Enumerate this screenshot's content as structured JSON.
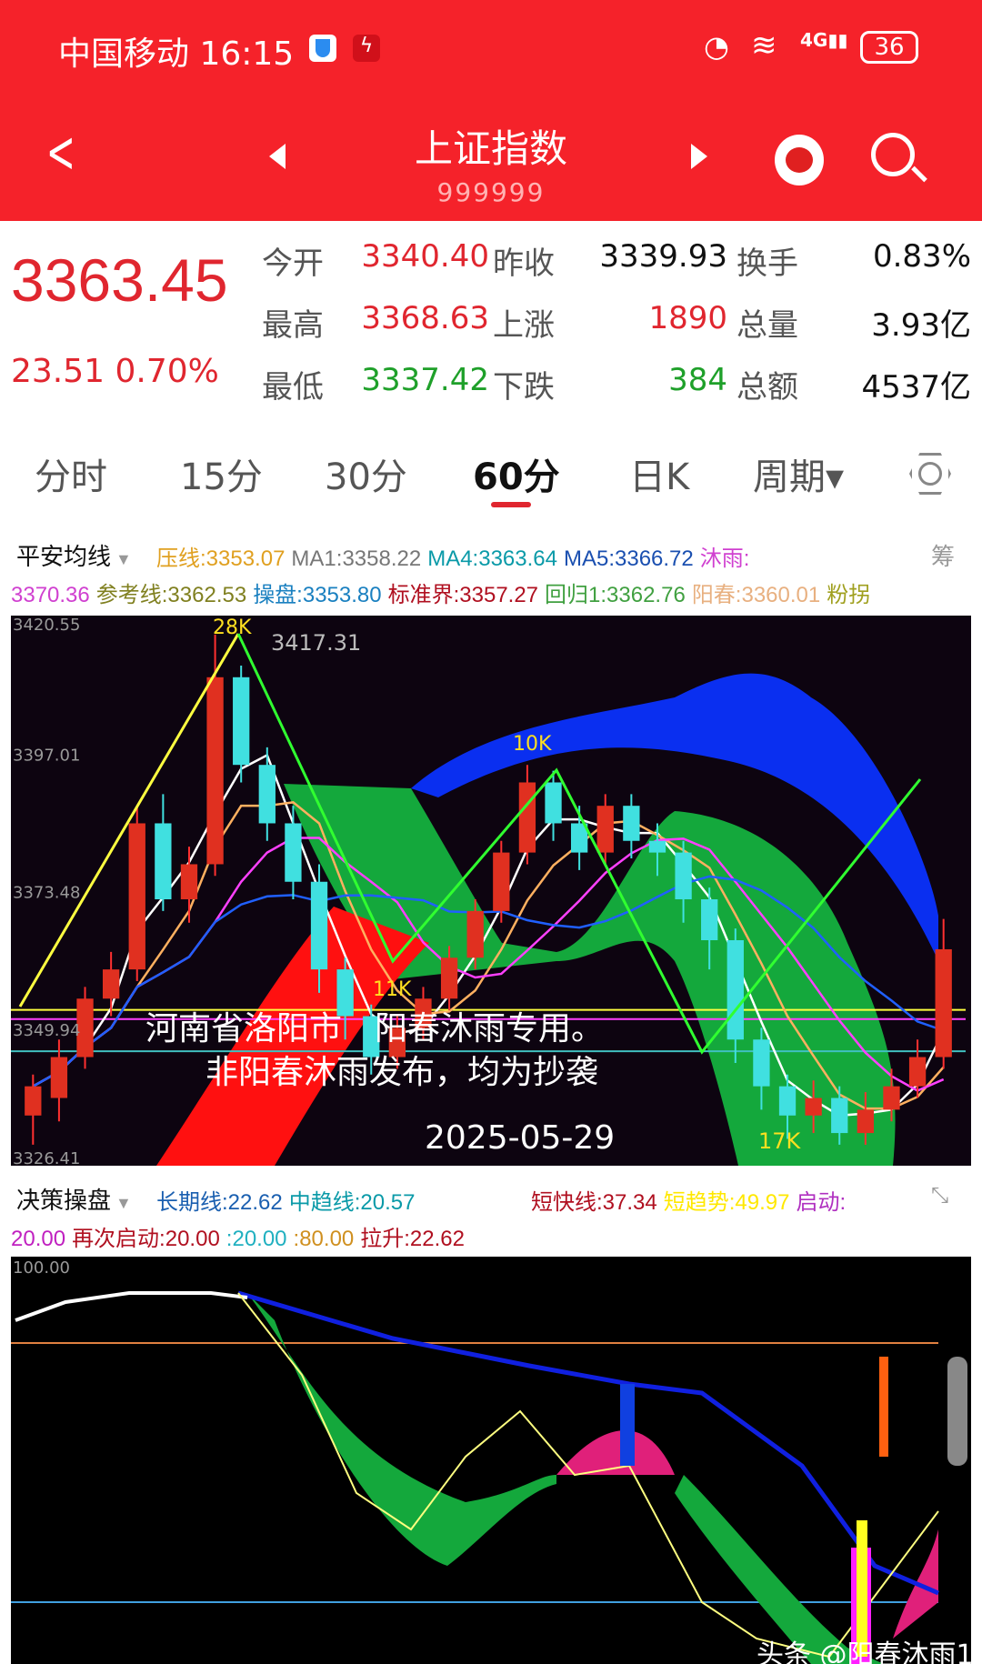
{
  "status": {
    "carrier": "中国移动",
    "time": "16:15",
    "battery": "36",
    "network": "4G"
  },
  "header": {
    "title": "上证指数",
    "code": "999999",
    "icons": [
      "back-icon",
      "prev-triangle-icon",
      "next-triangle-icon",
      "mascot-icon",
      "search-icon"
    ]
  },
  "quote": {
    "price": "3363.45",
    "change": "23.51",
    "pct": "0.70%",
    "rows": [
      [
        {
          "l": "今开",
          "v": "3340.40",
          "c": "red"
        },
        {
          "l": "昨收",
          "v": "3339.93",
          "c": "blk"
        },
        {
          "l": "换手",
          "v": "0.83%",
          "c": "blk"
        }
      ],
      [
        {
          "l": "最高",
          "v": "3368.63",
          "c": "red"
        },
        {
          "l": "上涨",
          "v": "1890",
          "c": "red"
        },
        {
          "l": "总量",
          "v": "3.93亿",
          "c": "blk"
        }
      ],
      [
        {
          "l": "最低",
          "v": "3337.42",
          "c": "green"
        },
        {
          "l": "下跌",
          "v": "384",
          "c": "green"
        },
        {
          "l": "总额",
          "v": "4537亿",
          "c": "blk"
        }
      ]
    ]
  },
  "tabs": [
    {
      "label": "分时"
    },
    {
      "label": "15分"
    },
    {
      "label": "30分"
    },
    {
      "label": "60分",
      "active": true
    },
    {
      "label": "日K"
    },
    {
      "label": "周期▾"
    }
  ],
  "legend1": {
    "name": "平安均线",
    "line1": [
      {
        "t": "压线:3353.07",
        "c": "#e0a020"
      },
      {
        "t": "MA1:3358.22",
        "c": "#777"
      },
      {
        "t": "MA4:3363.64",
        "c": "#0a9aa8"
      },
      {
        "t": "MA5:3366.72",
        "c": "#1a4fb0"
      },
      {
        "t": "沐雨:",
        "c": "#d040d0"
      }
    ],
    "tail": "筹",
    "line2": [
      {
        "t": "3370.36",
        "c": "#d040d0"
      },
      {
        "t": "参考线:3362.53",
        "c": "#808020"
      },
      {
        "t": "操盘:3353.80",
        "c": "#1a80c0"
      },
      {
        "t": "标准界:3357.27",
        "c": "#b01020"
      },
      {
        "t": "回归1:3362.76",
        "c": "#40a040"
      },
      {
        "t": "阳春:3360.01",
        "c": "#e8b080"
      },
      {
        "t": "粉拐",
        "c": "#a0a020"
      }
    ]
  },
  "chart1": {
    "yticks": [
      "3420.55",
      "3397.01",
      "3373.48",
      "3349.94",
      "3326.41"
    ],
    "ymax": 3420.55,
    "ymin": 3326.41,
    "annotations": {
      "k28": "28K",
      "high": "3417.31",
      "k10": "10K",
      "k11": "11K",
      "k17": "17K"
    },
    "watermark": {
      "line1": "河南省洛阳市　阳春沐雨专用。",
      "line2": "非阳春沐雨发布，均为抄袭",
      "date": "2025-05-29"
    },
    "hlines": [
      {
        "v": 3353.07,
        "c": "#ffff40"
      },
      {
        "v": 3351.5,
        "c": "#ff40ff"
      },
      {
        "v": 3346,
        "c": "#40c0c0"
      }
    ]
  },
  "chart_data": {
    "type": "candlestick",
    "ylim": [
      3326.41,
      3420.55
    ],
    "ohlc": [
      [
        3335,
        3340,
        3342,
        3330
      ],
      [
        3338,
        3345,
        3348,
        3334
      ],
      [
        3345,
        3355,
        3357,
        3343
      ],
      [
        3355,
        3360,
        3363,
        3352
      ],
      [
        3360,
        3385,
        3388,
        3358
      ],
      [
        3385,
        3372,
        3390,
        3370
      ],
      [
        3372,
        3378,
        3381,
        3368
      ],
      [
        3378,
        3410,
        3417.31,
        3376
      ],
      [
        3410,
        3395,
        3412,
        3392
      ],
      [
        3395,
        3385,
        3398,
        3382
      ],
      [
        3385,
        3375,
        3388,
        3372
      ],
      [
        3375,
        3360,
        3378,
        3356
      ],
      [
        3360,
        3352,
        3362,
        3348
      ],
      [
        3352,
        3345,
        3354,
        3342
      ],
      [
        3345,
        3350,
        3352,
        3343
      ],
      [
        3350,
        3355,
        3357,
        3348
      ],
      [
        3355,
        3362,
        3364,
        3353
      ],
      [
        3362,
        3370,
        3372,
        3360
      ],
      [
        3370,
        3380,
        3382,
        3368
      ],
      [
        3380,
        3392,
        3395,
        3378
      ],
      [
        3392,
        3385,
        3394,
        3382
      ],
      [
        3385,
        3380,
        3388,
        3377
      ],
      [
        3380,
        3388,
        3390,
        3378
      ],
      [
        3388,
        3382,
        3390,
        3379
      ],
      [
        3382,
        3380,
        3385,
        3376
      ],
      [
        3380,
        3372,
        3382,
        3368
      ],
      [
        3372,
        3365,
        3374,
        3360
      ],
      [
        3365,
        3348,
        3367,
        3344
      ],
      [
        3348,
        3340,
        3350,
        3336
      ],
      [
        3340,
        3335,
        3342,
        3331
      ],
      [
        3335,
        3338,
        3341,
        3332
      ],
      [
        3338,
        3332,
        3340,
        3330
      ],
      [
        3332,
        3336,
        3339,
        3330
      ],
      [
        3336,
        3340,
        3343,
        3334
      ],
      [
        3340,
        3345,
        3348,
        3338
      ],
      [
        3345,
        3363.45,
        3368.63,
        3343
      ]
    ]
  },
  "legend2": {
    "name": "决策操盘",
    "line1": [
      {
        "t": "长期线:22.62",
        "c": "#1a5fb0"
      },
      {
        "t": "中趋线:20.57",
        "c": "#0a9aa8"
      }
    ],
    "line1b": [
      {
        "t": "短快线:37.34",
        "c": "#b01020"
      },
      {
        "t": "短趋势:49.97",
        "c": "#ffe800"
      },
      {
        "t": "启动:",
        "c": "#b030c0"
      }
    ],
    "line2": [
      {
        "t": "20.00",
        "c": "#c020c0"
      },
      {
        "t": "再次启动:20.00",
        "c": "#b01020"
      },
      {
        "t": ":20.00",
        "c": "#20b0c0"
      },
      {
        "t": ":80.00",
        "c": "#d09020"
      },
      {
        "t": "拉升:22.62",
        "c": "#b01020"
      }
    ]
  },
  "chart2": {
    "ytop": "100.00",
    "watermark": "头条 @阳春沐雨1"
  }
}
